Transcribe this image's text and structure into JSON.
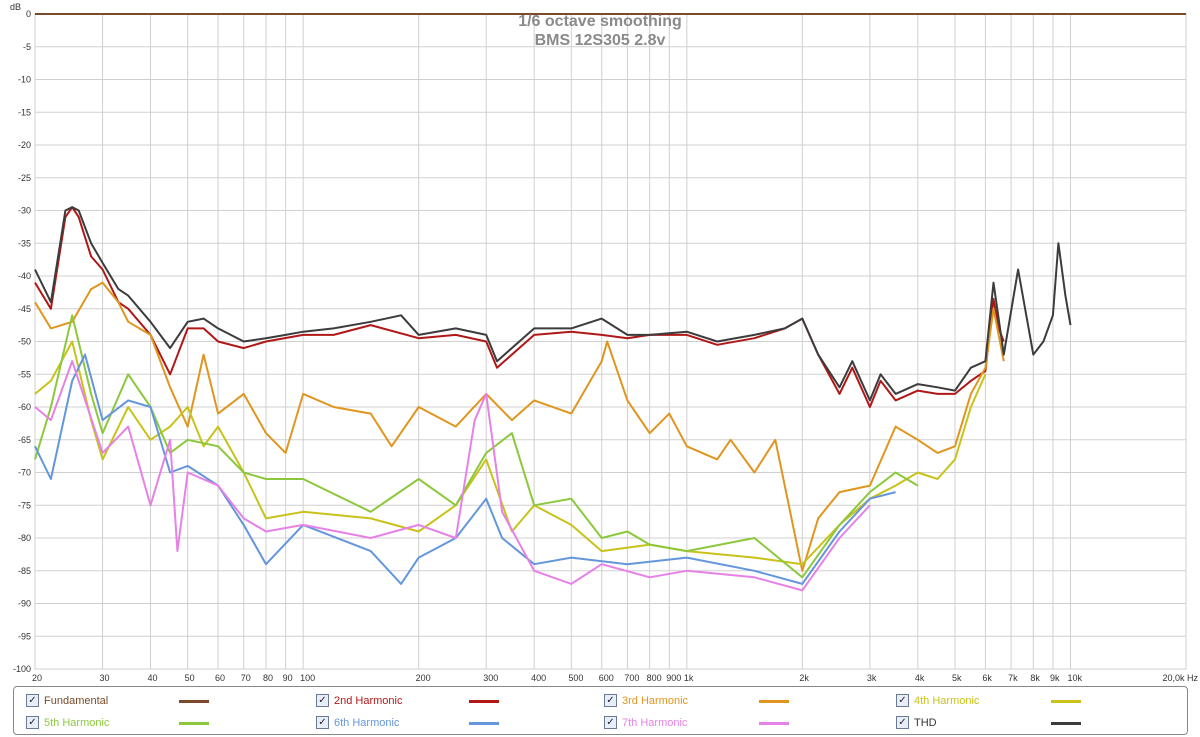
{
  "chart_data": {
    "type": "line",
    "title": "1/6 octave smoothing",
    "subtitle": "BMS 12S305 2.8v",
    "ylabel": "dB",
    "xunit": "Hz",
    "xscale": "log",
    "xlim": [
      20,
      20000
    ],
    "ylim": [
      -100,
      0
    ],
    "grid": true,
    "legend_placement": "bottom",
    "yticks": [
      0,
      -5,
      -10,
      -15,
      -20,
      -25,
      -30,
      -35,
      -40,
      -45,
      -50,
      -55,
      -60,
      -65,
      -70,
      -75,
      -80,
      -85,
      -90,
      -95,
      -100
    ],
    "xticks": [
      {
        "v": 20,
        "label": "20"
      },
      {
        "v": 30,
        "label": "30"
      },
      {
        "v": 40,
        "label": "40"
      },
      {
        "v": 50,
        "label": "50"
      },
      {
        "v": 60,
        "label": "60"
      },
      {
        "v": 70,
        "label": "70"
      },
      {
        "v": 80,
        "label": "80"
      },
      {
        "v": 90,
        "label": "90"
      },
      {
        "v": 100,
        "label": "100"
      },
      {
        "v": 200,
        "label": "200"
      },
      {
        "v": 300,
        "label": "300"
      },
      {
        "v": 400,
        "label": "400"
      },
      {
        "v": 500,
        "label": "500"
      },
      {
        "v": 600,
        "label": "600"
      },
      {
        "v": 700,
        "label": "700"
      },
      {
        "v": 800,
        "label": "800"
      },
      {
        "v": 900,
        "label": "900"
      },
      {
        "v": 1000,
        "label": "1k"
      },
      {
        "v": 2000,
        "label": "2k"
      },
      {
        "v": 3000,
        "label": "3k"
      },
      {
        "v": 4000,
        "label": "4k"
      },
      {
        "v": 5000,
        "label": "5k"
      },
      {
        "v": 6000,
        "label": "6k"
      },
      {
        "v": 7000,
        "label": "7k"
      },
      {
        "v": 8000,
        "label": "8k"
      },
      {
        "v": 9000,
        "label": "9k"
      },
      {
        "v": 10000,
        "label": "10k"
      },
      {
        "v": 20000,
        "label": "20,0k Hz"
      }
    ],
    "series": [
      {
        "name": "Fundamental",
        "color": "#7a4a2a",
        "checked": true,
        "x": [
          20,
          20000
        ],
        "y": [
          0,
          0
        ]
      },
      {
        "name": "2nd Harmonic",
        "color": "#b01818",
        "checked": true,
        "x": [
          20,
          22,
          24,
          25,
          26,
          28,
          30,
          33,
          35,
          40,
          45,
          50,
          55,
          60,
          70,
          80,
          100,
          120,
          150,
          200,
          250,
          300,
          320,
          400,
          500,
          600,
          700,
          800,
          1000,
          1200,
          1500,
          1800,
          2000,
          2200,
          2500,
          2700,
          3000,
          3200,
          3500,
          4000,
          4500,
          5000,
          5500,
          6000,
          6300,
          6500,
          6700
        ],
        "y": [
          -41,
          -45,
          -31,
          -29.5,
          -31,
          -37,
          -39,
          -44,
          -45,
          -49,
          -55,
          -48,
          -48,
          -50,
          -51,
          -50,
          -49,
          -49,
          -47.5,
          -49.5,
          -49,
          -50,
          -54,
          -49,
          -48.5,
          -49,
          -49.5,
          -49,
          -49,
          -50.5,
          -49.5,
          -48,
          -46.5,
          -52,
          -58,
          -54,
          -60,
          -56,
          -59,
          -57.5,
          -58,
          -58,
          -56,
          -54.5,
          -43.5,
          -48,
          -50
        ]
      },
      {
        "name": "3rd Harmonic",
        "color": "#e0961e",
        "checked": true,
        "x": [
          20,
          22,
          25,
          28,
          30,
          33,
          35,
          40,
          45,
          50,
          55,
          60,
          70,
          80,
          90,
          100,
          120,
          150,
          170,
          200,
          250,
          300,
          350,
          400,
          500,
          600,
          620,
          700,
          800,
          900,
          1000,
          1200,
          1300,
          1500,
          1700,
          2000,
          2200,
          2500,
          3000,
          3500,
          4000,
          4500,
          5000,
          5500,
          6000,
          6300,
          6700
        ],
        "y": [
          -44,
          -48,
          -47,
          -42,
          -41,
          -44,
          -47,
          -49,
          -57,
          -63,
          -52,
          -61,
          -58,
          -64,
          -67,
          -58,
          -60,
          -61,
          -66,
          -60,
          -63,
          -58,
          -62,
          -59,
          -61,
          -53,
          -50,
          -59,
          -64,
          -61,
          -66,
          -68,
          -65,
          -70,
          -65,
          -85,
          -77,
          -73,
          -72,
          -63,
          -65,
          -67,
          -66,
          -58,
          -54,
          -45,
          -53
        ]
      },
      {
        "name": "4th Harmonic",
        "color": "#c8c21a",
        "checked": true,
        "x": [
          20,
          22,
          25,
          28,
          30,
          35,
          40,
          45,
          50,
          55,
          60,
          70,
          80,
          100,
          150,
          200,
          250,
          300,
          350,
          400,
          500,
          600,
          800,
          1000,
          1500,
          2000,
          2500,
          3000,
          3500,
          4000,
          4500,
          5000,
          5500,
          6000
        ],
        "y": [
          -58,
          -56,
          -50,
          -62,
          -68,
          -60,
          -65,
          -63,
          -60,
          -66,
          -63,
          -70,
          -77,
          -76,
          -77,
          -79,
          -75,
          -68,
          -79,
          -75,
          -78,
          -82,
          -81,
          -82,
          -83,
          -84,
          -78,
          -74,
          -72,
          -70,
          -71,
          -68,
          -60,
          -55
        ]
      },
      {
        "name": "5th Harmonic",
        "color": "#8cc83c",
        "checked": true,
        "x": [
          20,
          22,
          25,
          28,
          30,
          35,
          40,
          45,
          50,
          60,
          70,
          80,
          100,
          150,
          200,
          250,
          300,
          350,
          400,
          500,
          600,
          700,
          800,
          1000,
          1500,
          2000,
          2500,
          3000,
          3500,
          4000
        ],
        "y": [
          -68,
          -60,
          -46,
          -58,
          -64,
          -55,
          -60,
          -67,
          -65,
          -66,
          -70,
          -71,
          -71,
          -76,
          -71,
          -75,
          -67,
          -64,
          -75,
          -74,
          -80,
          -79,
          -81,
          -82,
          -80,
          -86,
          -78,
          -73,
          -70,
          -72
        ]
      },
      {
        "name": "6th Harmonic",
        "color": "#6496dc",
        "checked": true,
        "x": [
          20,
          22,
          25,
          27,
          30,
          35,
          40,
          45,
          50,
          60,
          70,
          80,
          100,
          150,
          180,
          200,
          250,
          300,
          330,
          400,
          500,
          700,
          1000,
          1500,
          2000,
          2500,
          3000,
          3500
        ],
        "y": [
          -66,
          -71,
          -56,
          -52,
          -62,
          -59,
          -60,
          -70,
          -69,
          -72,
          -78,
          -84,
          -78,
          -82,
          -87,
          -83,
          -80,
          -74,
          -80,
          -84,
          -83,
          -84,
          -83,
          -85,
          -87,
          -79,
          -74,
          -73
        ]
      },
      {
        "name": "7th Harmonic",
        "color": "#e682e6",
        "checked": true,
        "x": [
          20,
          22,
          25,
          30,
          35,
          40,
          45,
          47,
          50,
          60,
          70,
          80,
          100,
          150,
          200,
          250,
          280,
          300,
          330,
          400,
          500,
          600,
          800,
          1000,
          1500,
          2000,
          2500,
          3000
        ],
        "y": [
          -60,
          -62,
          -53,
          -67,
          -63,
          -75,
          -65,
          -82,
          -70,
          -72,
          -77,
          -79,
          -78,
          -80,
          -78,
          -80,
          -62,
          -58,
          -76,
          -85,
          -87,
          -84,
          -86,
          -85,
          -86,
          -88,
          -80,
          -75
        ]
      },
      {
        "name": "THD",
        "color": "#3c3c3c",
        "checked": true,
        "x": [
          20,
          22,
          24,
          25,
          26,
          28,
          30,
          33,
          35,
          40,
          45,
          50,
          55,
          60,
          70,
          80,
          90,
          100,
          120,
          150,
          180,
          200,
          250,
          300,
          320,
          400,
          500,
          600,
          700,
          800,
          1000,
          1200,
          1500,
          1800,
          2000,
          2200,
          2500,
          2700,
          3000,
          3200,
          3500,
          4000,
          4500,
          5000,
          5500,
          6000,
          6300,
          6700,
          7300,
          8000,
          8500,
          9000,
          9300,
          9700,
          10000
        ],
        "y": [
          -39,
          -44,
          -30,
          -29.5,
          -30,
          -35,
          -38,
          -42,
          -43,
          -47,
          -51,
          -47,
          -46.5,
          -48,
          -50,
          -49.5,
          -49,
          -48.5,
          -48,
          -47,
          -46,
          -49,
          -48,
          -49,
          -53,
          -48,
          -48,
          -46.5,
          -49,
          -49,
          -48.5,
          -50,
          -49,
          -48,
          -46.5,
          -52,
          -57,
          -53,
          -59,
          -55,
          -58,
          -56.5,
          -57,
          -57.5,
          -54,
          -53,
          -41,
          -52,
          -39,
          -52,
          -50,
          -46,
          -35,
          -43,
          -47.5
        ]
      }
    ]
  }
}
